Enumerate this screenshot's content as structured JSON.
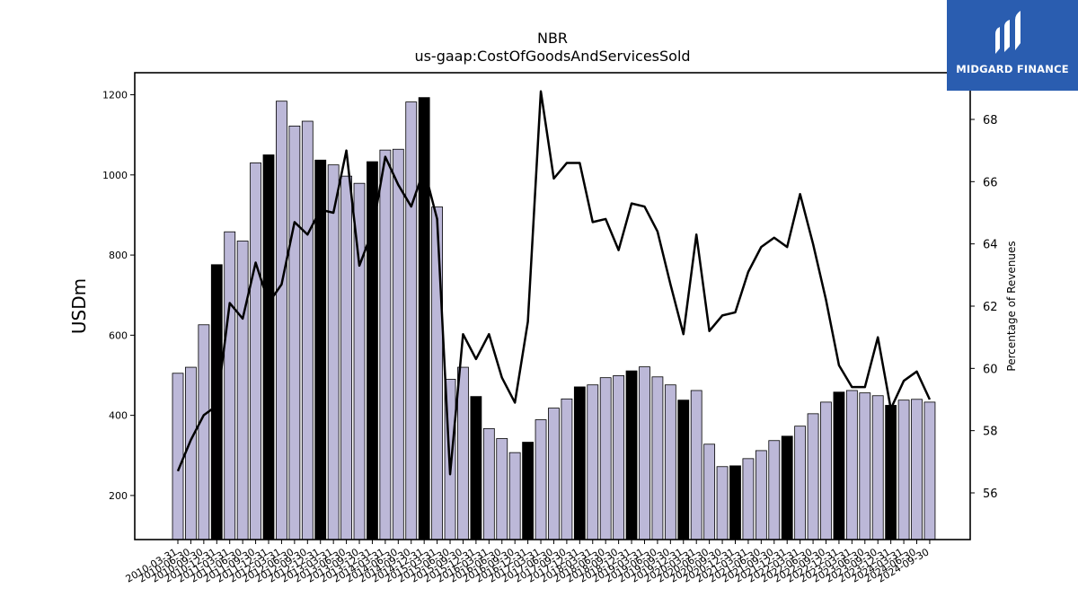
{
  "chart_data": {
    "type": "bar",
    "title": "NBR",
    "subtitle": "us-gaap:CostOfGoodsAndServicesSold",
    "ylabel": "USDm",
    "y2label": "Percentage of Revenues",
    "ylim": [
      90,
      1255
    ],
    "y2lim": [
      54.5,
      69.5
    ],
    "yticks": [
      200,
      400,
      600,
      800,
      1000,
      1200
    ],
    "y2ticks": [
      56,
      58,
      60,
      62,
      64,
      66,
      68
    ],
    "bar_fill": "#bcb8d8",
    "q4_fill": "#000000",
    "line_color": "#000000",
    "categories": [
      "2010-03-31",
      "2010-06-30",
      "2010-09-30",
      "2010-12-31",
      "2011-03-31",
      "2011-06-30",
      "2011-09-30",
      "2011-12-31",
      "2012-03-31",
      "2012-06-30",
      "2012-09-30",
      "2012-12-31",
      "2013-03-31",
      "2013-06-30",
      "2013-09-30",
      "2013-12-31",
      "2014-03-31",
      "2014-06-30",
      "2014-09-30",
      "2014-12-31",
      "2015-03-31",
      "2015-06-30",
      "2015-09-30",
      "2015-12-31",
      "2016-03-31",
      "2016-06-30",
      "2016-09-30",
      "2016-12-31",
      "2017-03-31",
      "2017-06-30",
      "2017-09-30",
      "2017-12-31",
      "2018-03-31",
      "2018-06-30",
      "2018-09-30",
      "2018-12-31",
      "2019-03-31",
      "2019-06-30",
      "2019-09-30",
      "2019-12-31",
      "2020-03-31",
      "2020-06-30",
      "2020-09-30",
      "2020-12-31",
      "2021-03-31",
      "2021-06-30",
      "2021-09-30",
      "2021-12-31",
      "2022-03-31",
      "2022-06-30",
      "2022-09-30",
      "2022-12-31",
      "2023-03-31",
      "2023-06-30",
      "2023-09-30",
      "2023-12-31",
      "2024-03-31",
      "2024-06-30",
      "2024-09-30"
    ],
    "series": [
      {
        "kind": "bar",
        "values": [
          505,
          520,
          626,
          776,
          858,
          835,
          1030,
          1050,
          1184,
          1122,
          1134,
          1037,
          1025,
          997,
          979,
          1033,
          1062,
          1064,
          1182,
          1193,
          920,
          490,
          520,
          447,
          367,
          342,
          307,
          333,
          389,
          418,
          441,
          471,
          476,
          494,
          499,
          511,
          521,
          496,
          476,
          438,
          462,
          328,
          272,
          274,
          292,
          312,
          337,
          348,
          373,
          404,
          433,
          458,
          462,
          456,
          449,
          425,
          438,
          440,
          433
        ]
      },
      {
        "kind": "line",
        "axis": "right",
        "values": [
          56.7,
          57.7,
          58.5,
          58.8,
          62.1,
          61.6,
          63.4,
          62.1,
          62.7,
          64.7,
          64.3,
          65.1,
          65.0,
          67.0,
          63.3,
          64.4,
          66.8,
          65.9,
          65.2,
          66.4,
          64.8,
          56.6,
          61.1,
          60.3,
          61.1,
          59.7,
          58.9,
          61.5,
          68.9,
          66.1,
          66.6,
          66.6,
          64.7,
          64.8,
          63.8,
          65.3,
          65.2,
          64.4,
          62.7,
          61.1,
          64.3,
          61.2,
          61.7,
          61.8,
          63.1,
          63.9,
          64.2,
          63.9,
          65.6,
          64.0,
          62.2,
          60.1,
          59.4,
          59.4,
          61.0,
          58.7,
          59.6,
          59.9,
          59.0
        ]
      }
    ]
  },
  "logo": {
    "text": "MIDGARD FINANCE",
    "bg": "#2a5db0"
  }
}
